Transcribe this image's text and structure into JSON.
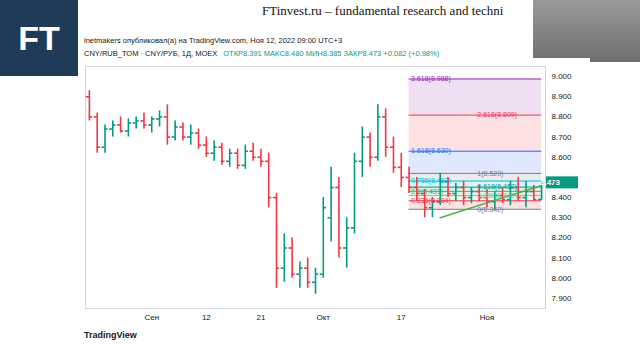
{
  "page": {
    "brand": "FT",
    "title": "FTinvest.ru – fundamental research and techni",
    "source": "TradingView"
  },
  "chart_data": {
    "type": "ohlc",
    "title": "lnetmakers опубликовал(а) на TradingView.com, Ноя 12, 2022 09:00 UTC+3",
    "subtitle": "CNY/RUB_TOM · CNY/РУБ, 1Д, MOEX",
    "annotations": [
      "ОТКР8.391 МАКС8.480 МИН8.385 ЗАКР8.473 +0.082 (+0.98%)"
    ],
    "categories": [
      null,
      null,
      null,
      null,
      null,
      null,
      null,
      null,
      "Сен",
      null,
      null,
      null,
      null,
      null,
      null,
      "12",
      null,
      null,
      null,
      null,
      null,
      null,
      "21",
      null,
      null,
      null,
      null,
      null,
      null,
      null,
      "Окт",
      null,
      null,
      null,
      null,
      null,
      null,
      null,
      null,
      null,
      "17",
      null,
      null,
      null,
      null,
      null,
      null,
      null,
      null,
      null,
      null,
      "Ноя",
      null,
      null,
      null,
      null,
      null,
      null,
      null
    ],
    "open": [
      8.9,
      8.8,
      8.65,
      8.74,
      8.76,
      8.73,
      8.77,
      8.78,
      8.76,
      8.79,
      8.8,
      8.7,
      8.75,
      8.7,
      8.72,
      8.66,
      8.62,
      8.65,
      8.58,
      8.62,
      8.56,
      8.63,
      8.6,
      8.58,
      8.4,
      8.05,
      8.15,
      8.02,
      8.05,
      7.98,
      8.02,
      8.3,
      8.45,
      8.15,
      8.25,
      8.58,
      8.7,
      8.6,
      8.8,
      8.65,
      8.55,
      8.5,
      8.45,
      8.42,
      8.35,
      8.38,
      8.48,
      8.42,
      8.45,
      8.4,
      8.43,
      8.4,
      8.38,
      8.41,
      8.39,
      8.45,
      8.4,
      8.43,
      8.391
    ],
    "high": [
      8.93,
      8.82,
      8.76,
      8.78,
      8.8,
      8.79,
      8.8,
      8.82,
      8.8,
      8.83,
      8.86,
      8.78,
      8.77,
      8.76,
      8.74,
      8.7,
      8.68,
      8.67,
      8.64,
      8.64,
      8.66,
      8.67,
      8.64,
      8.62,
      8.42,
      8.22,
      8.2,
      8.08,
      8.1,
      8.05,
      8.4,
      8.55,
      8.5,
      8.3,
      8.62,
      8.75,
      8.72,
      8.86,
      8.84,
      8.7,
      8.62,
      8.55,
      8.5,
      8.44,
      8.4,
      8.52,
      8.5,
      8.47,
      8.48,
      8.45,
      8.46,
      8.44,
      8.43,
      8.45,
      8.48,
      8.5,
      8.48,
      8.46,
      8.48
    ],
    "low": [
      8.78,
      8.62,
      8.62,
      8.7,
      8.72,
      8.7,
      8.74,
      8.74,
      8.72,
      8.75,
      8.66,
      8.68,
      8.68,
      8.66,
      8.64,
      8.6,
      8.58,
      8.56,
      8.55,
      8.54,
      8.54,
      8.58,
      8.55,
      8.35,
      7.95,
      7.98,
      8.0,
      7.95,
      7.95,
      7.92,
      8.0,
      8.18,
      8.1,
      8.05,
      8.22,
      8.5,
      8.55,
      8.58,
      8.6,
      8.52,
      8.45,
      8.42,
      8.38,
      8.3,
      8.3,
      8.36,
      8.4,
      8.38,
      8.36,
      8.37,
      8.38,
      8.35,
      8.34,
      8.37,
      8.36,
      8.38,
      8.35,
      8.38,
      8.385
    ],
    "close": [
      8.8,
      8.65,
      8.74,
      8.76,
      8.73,
      8.77,
      8.78,
      8.76,
      8.79,
      8.8,
      8.7,
      8.75,
      8.7,
      8.72,
      8.66,
      8.62,
      8.65,
      8.58,
      8.62,
      8.56,
      8.63,
      8.6,
      8.58,
      8.4,
      8.05,
      8.15,
      8.02,
      8.05,
      7.98,
      8.02,
      8.35,
      8.45,
      8.15,
      8.25,
      8.58,
      8.7,
      8.6,
      8.8,
      8.65,
      8.55,
      8.5,
      8.45,
      8.42,
      8.35,
      8.38,
      8.48,
      8.42,
      8.45,
      8.4,
      8.43,
      8.4,
      8.38,
      8.41,
      8.39,
      8.45,
      8.4,
      8.43,
      8.39,
      8.473
    ],
    "colors": [
      "#f23645",
      "#f23645",
      "#089981",
      "#089981",
      "#f23645",
      "#089981",
      "#089981",
      "#f23645",
      "#089981",
      "#089981",
      "#f23645",
      "#089981",
      "#f23645",
      "#089981",
      "#f23645",
      "#f23645",
      "#089981",
      "#f23645",
      "#089981",
      "#f23645",
      "#089981",
      "#f23645",
      "#f23645",
      "#f23645",
      "#f23645",
      "#089981",
      "#f23645",
      "#089981",
      "#f23645",
      "#089981",
      "#089981",
      "#089981",
      "#f23645",
      "#089981",
      "#089981",
      "#089981",
      "#f23645",
      "#089981",
      "#f23645",
      "#f23645",
      "#f23645",
      "#f23645",
      "#f23645",
      "#f23645",
      "#089981",
      "#089981",
      "#f23645",
      "#089981",
      "#f23645",
      "#089981",
      "#f23645",
      "#f23645",
      "#089981",
      "#f23645",
      "#089981",
      "#f23645",
      "#089981",
      "#f23645",
      "#089981"
    ],
    "ylim": [
      7.85,
      9.05
    ],
    "yticks": [
      {
        "value": 7.9,
        "label": "7.900"
      },
      {
        "value": 8.0,
        "label": "8.000"
      },
      {
        "value": 8.1,
        "label": "8.100"
      },
      {
        "value": 8.2,
        "label": "8.200"
      },
      {
        "value": 8.3,
        "label": "8.300"
      },
      {
        "value": 8.4,
        "label": "8.400"
      },
      {
        "value": 8.6,
        "label": "8.600"
      },
      {
        "value": 8.7,
        "label": "8.700"
      },
      {
        "value": 8.8,
        "label": "8.800"
      },
      {
        "value": 8.9,
        "label": "8.900"
      },
      {
        "value": 9.0,
        "label": "9.000"
      }
    ],
    "grid": false,
    "last_price": {
      "value": 8.473,
      "color": "#089981"
    },
    "fib": {
      "x": [
        41,
        58
      ],
      "levels": [
        {
          "price": 8.988,
          "label": "3.618(8.988)",
          "color": "#9c27b0"
        },
        {
          "price": 8.809,
          "label": "2.618(8.809)",
          "color": "#f23645"
        },
        {
          "price": 8.63,
          "label": "1.618(8.630)",
          "color": "#2962ff"
        },
        {
          "price": 8.52,
          "label": "1(8.520)",
          "color": "#787b86"
        },
        {
          "price": 8.482,
          "label": "0.786(8.482)",
          "color": "#00bcd4"
        },
        {
          "price": 8.452,
          "label": "0.618(8.452)",
          "color": "#089981"
        },
        {
          "price": 8.431,
          "label": "0.5(8.431)",
          "color": "#4caf50"
        },
        {
          "price": 8.41,
          "label": "0.382(8.410)",
          "color": "#81c784"
        },
        {
          "price": 8.384,
          "label": "0.236(8.384)",
          "color": "#f23645"
        },
        {
          "price": 8.342,
          "label": "0(8.342)",
          "color": "#787b86"
        }
      ]
    },
    "trendline": {
      "x": [
        45,
        58
      ],
      "y": [
        8.3,
        8.46
      ],
      "color": "#4caf50"
    }
  }
}
